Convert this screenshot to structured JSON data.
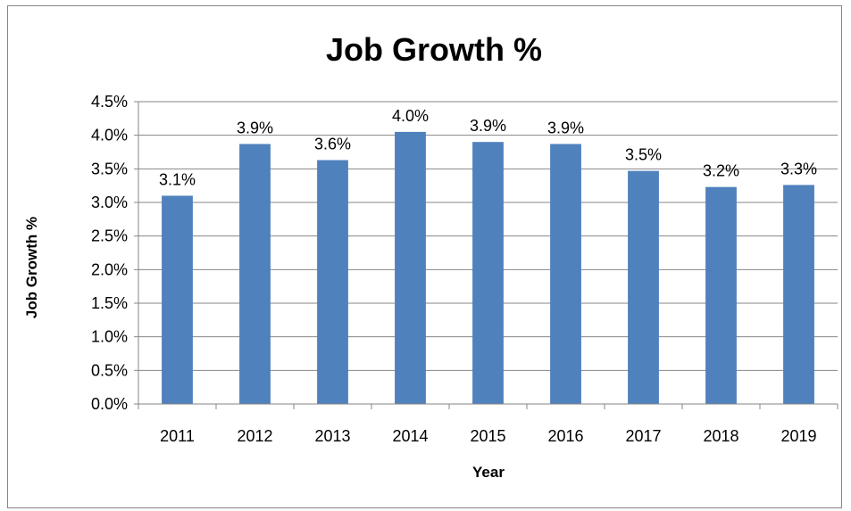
{
  "chart_data": {
    "type": "bar",
    "title": "Job Growth %",
    "xlabel": "Year",
    "ylabel": "Job Growth %",
    "categories": [
      "2011",
      "2012",
      "2013",
      "2014",
      "2015",
      "2016",
      "2017",
      "2018",
      "2019"
    ],
    "values": [
      3.1,
      3.87,
      3.63,
      4.05,
      3.9,
      3.87,
      3.47,
      3.23,
      3.26
    ],
    "data_labels": [
      "3.1%",
      "3.9%",
      "3.6%",
      "4.0%",
      "3.9%",
      "3.9%",
      "3.5%",
      "3.2%",
      "3.3%"
    ],
    "ylim": [
      0,
      4.5
    ],
    "y_ticks": [
      "0.0%",
      "0.5%",
      "1.0%",
      "1.5%",
      "2.0%",
      "2.5%",
      "3.0%",
      "3.5%",
      "4.0%",
      "4.5%"
    ],
    "y_tick_values": [
      0,
      0.5,
      1,
      1.5,
      2,
      2.5,
      3,
      3.5,
      4,
      4.5
    ],
    "bar_color": "#4f81bd",
    "grid": true,
    "legend": "none"
  }
}
